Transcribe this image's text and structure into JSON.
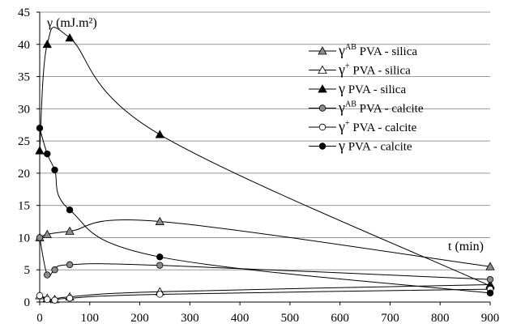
{
  "chart_data": {
    "type": "line",
    "y_annotation": "γ  (mJ.m²)",
    "x_annotation": "t (min)",
    "xlim": [
      0,
      900
    ],
    "ylim": [
      0,
      45
    ],
    "x_ticks": [
      0,
      100,
      200,
      300,
      400,
      500,
      600,
      700,
      800,
      900
    ],
    "y_ticks": [
      0,
      5,
      10,
      15,
      20,
      25,
      30,
      35,
      40,
      45
    ],
    "grid": "horizontal",
    "legend_position": "right",
    "series": [
      {
        "name": "γAB PVA - silica",
        "label_main": "γ",
        "label_sup": "AB",
        "label_rest": " PVA - silica",
        "marker": "triangle",
        "fill": "#8c8c8c",
        "x": [
          0,
          15,
          60,
          240,
          900
        ],
        "y": [
          10,
          10.5,
          11,
          12.5,
          5.5
        ]
      },
      {
        "name": "γ+ PVA - silica",
        "label_main": "γ",
        "label_sup": "+",
        "label_rest": " PVA - silica",
        "marker": "triangle",
        "fill": "#ffffff",
        "x": [
          0,
          15,
          30,
          60,
          240,
          900
        ],
        "y": [
          1,
          0.6,
          0.4,
          0.8,
          1.6,
          2.7
        ]
      },
      {
        "name": "γ PVA - silica",
        "label_main": "γ",
        "label_sup": "",
        "label_rest": " PVA - silica",
        "marker": "triangle",
        "fill": "#000000",
        "x": [
          0,
          15,
          60,
          240,
          900
        ],
        "y": [
          23.5,
          40,
          41,
          26,
          2.5
        ]
      },
      {
        "name": "γAB PVA - calcite",
        "label_main": "γ",
        "label_sup": "AB",
        "label_rest": " PVA - calcite",
        "marker": "circle",
        "fill": "#8c8c8c",
        "x": [
          0,
          15,
          30,
          60,
          240,
          900
        ],
        "y": [
          10,
          4.2,
          5,
          5.8,
          5.7,
          3.5
        ]
      },
      {
        "name": "γ+ PVA - calcite",
        "label_main": "γ",
        "label_sup": "+",
        "label_rest": " PVA - calcite",
        "marker": "circle",
        "fill": "#ffffff",
        "x": [
          0,
          15,
          30,
          60,
          240,
          900
        ],
        "y": [
          1,
          0.4,
          0.3,
          0.6,
          1.2,
          2
        ]
      },
      {
        "name": "γ PVA - calcite",
        "label_main": "γ",
        "label_sup": "",
        "label_rest": " PVA - calcite",
        "marker": "circle",
        "fill": "#000000",
        "x": [
          0,
          15,
          30,
          60,
          240,
          900
        ],
        "y": [
          27,
          23,
          20.5,
          14.3,
          7,
          1.4
        ]
      }
    ]
  }
}
